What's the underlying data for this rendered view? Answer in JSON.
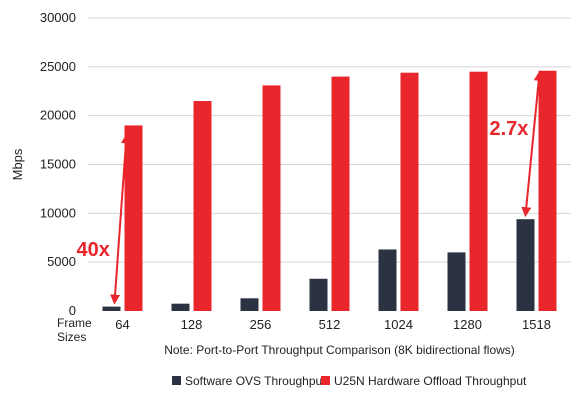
{
  "chart_data": {
    "type": "bar",
    "ylabel": "Mbps",
    "xlabel_lines": [
      "Frame",
      "Sizes"
    ],
    "note": "Note: Port-to-Port Throughput Comparison (8K bidirectional flows)",
    "ylim": [
      0,
      30000
    ],
    "yticks": [
      0,
      5000,
      10000,
      15000,
      20000,
      25000,
      30000
    ],
    "categories": [
      "64",
      "128",
      "256",
      "512",
      "1024",
      "1280",
      "1518"
    ],
    "series": [
      {
        "name": "Software OVS Throughput",
        "color": "#2b3242",
        "values": [
          450,
          750,
          1300,
          3300,
          6300,
          6000,
          9400
        ]
      },
      {
        "name": "U25N Hardware Offload Throughput",
        "color": "#e8262c",
        "values": [
          19000,
          21500,
          23100,
          24000,
          24400,
          24500,
          24600
        ]
      }
    ],
    "legend_position": "bottom",
    "grid": true,
    "annotations": [
      {
        "label": "40x",
        "category_index": 0
      },
      {
        "label": "2.7x",
        "category_index": 6
      }
    ]
  }
}
